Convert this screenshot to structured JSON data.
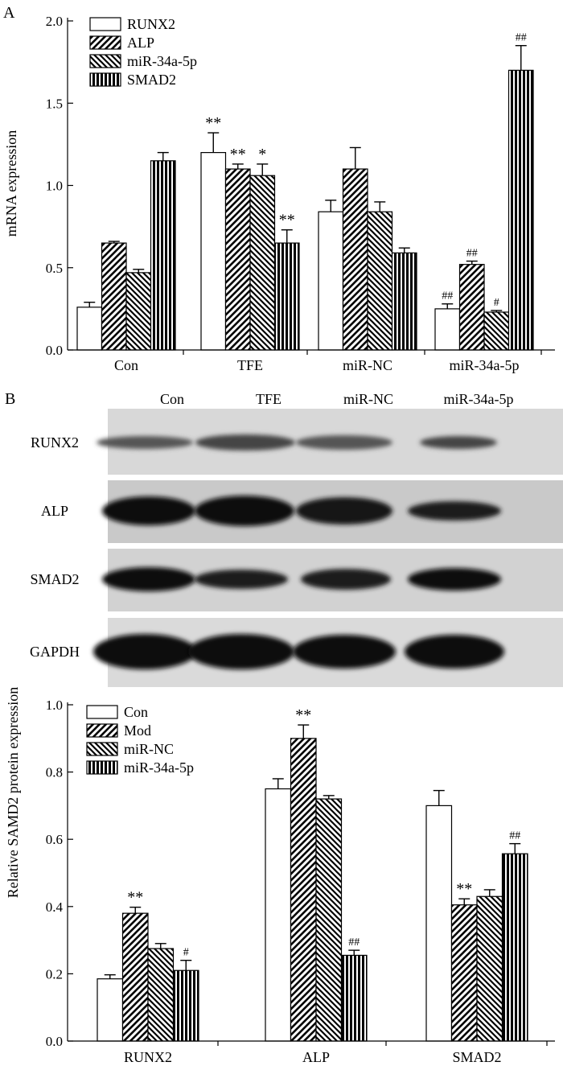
{
  "panel_a": {
    "label": "A",
    "chart_data": {
      "type": "bar",
      "ylabel": "mRNA expression",
      "ylim": [
        0,
        2.0
      ],
      "yticks": [
        "0.0",
        "0.5",
        "1.0",
        "1.5",
        "2.0"
      ],
      "categories": [
        "Con",
        "TFE",
        "miR-NC",
        "miR-34a-5p"
      ],
      "series": [
        {
          "name": "RUNX2",
          "pattern": "open",
          "values": [
            0.26,
            1.2,
            0.84,
            0.25
          ],
          "errors": [
            0.03,
            0.12,
            0.07,
            0.03
          ],
          "marks": [
            "",
            "**",
            "",
            "##"
          ]
        },
        {
          "name": "ALP",
          "pattern": "diag-right",
          "values": [
            0.65,
            1.1,
            1.1,
            0.52
          ],
          "errors": [
            0.01,
            0.03,
            0.13,
            0.02
          ],
          "marks": [
            "",
            "**",
            "",
            "##"
          ]
        },
        {
          "name": "miR-34a-5p",
          "pattern": "diag-left",
          "values": [
            0.47,
            1.06,
            0.84,
            0.23
          ],
          "errors": [
            0.02,
            0.07,
            0.06,
            0.01
          ],
          "marks": [
            "",
            "*",
            "",
            "#"
          ]
        },
        {
          "name": "SMAD2",
          "pattern": "vertical",
          "values": [
            1.15,
            0.65,
            0.59,
            1.7
          ],
          "errors": [
            0.05,
            0.08,
            0.03,
            0.15
          ],
          "marks": [
            "",
            "**",
            "",
            "##"
          ]
        }
      ],
      "legend": "top-left"
    }
  },
  "panel_b": {
    "label": "B",
    "lanes": [
      "Con",
      "TFE",
      "miR-NC",
      "miR-34a-5p"
    ],
    "blots": [
      {
        "name": "RUNX2"
      },
      {
        "name": "ALP"
      },
      {
        "name": "SMAD2"
      },
      {
        "name": "GAPDH"
      }
    ],
    "chart_data": {
      "type": "bar",
      "ylabel": "Relative SAMD2 protein expression",
      "ylim": [
        0,
        1.0
      ],
      "yticks": [
        "0.0",
        "0.2",
        "0.4",
        "0.6",
        "0.8",
        "1.0"
      ],
      "categories": [
        "RUNX2",
        "ALP",
        "SMAD2"
      ],
      "series": [
        {
          "name": "Con",
          "pattern": "open",
          "values": [
            0.185,
            0.75,
            0.7
          ],
          "errors": [
            0.012,
            0.03,
            0.045
          ],
          "marks": [
            "",
            "",
            ""
          ]
        },
        {
          "name": "Mod",
          "pattern": "diag-right",
          "values": [
            0.38,
            0.9,
            0.405
          ],
          "errors": [
            0.018,
            0.04,
            0.018
          ],
          "marks": [
            "**",
            "**",
            "**"
          ]
        },
        {
          "name": "miR-NC",
          "pattern": "diag-left",
          "values": [
            0.275,
            0.72,
            0.43
          ],
          "errors": [
            0.015,
            0.01,
            0.02
          ],
          "marks": [
            "",
            "",
            ""
          ]
        },
        {
          "name": "miR-34a-5p",
          "pattern": "vertical",
          "values": [
            0.21,
            0.255,
            0.557
          ],
          "errors": [
            0.03,
            0.015,
            0.03
          ],
          "marks": [
            "#",
            "##",
            "##"
          ]
        }
      ],
      "legend": "top-left"
    }
  }
}
